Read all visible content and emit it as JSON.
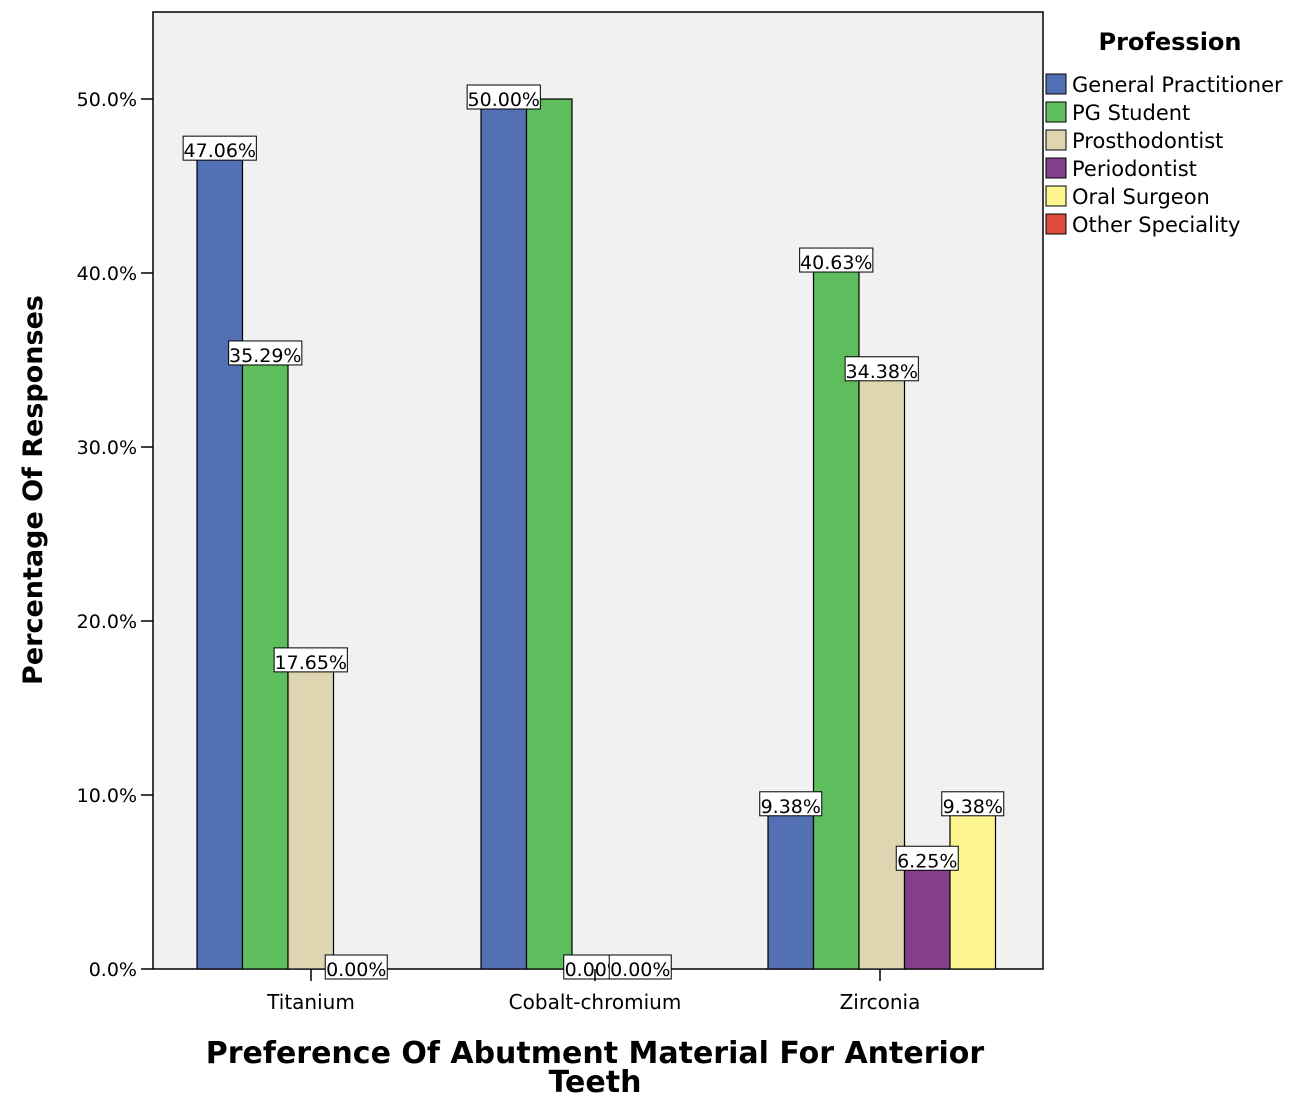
{
  "chart_data": {
    "type": "bar",
    "xlabel_lines": [
      "Preference Of Abutment Material For Anterior",
      "Teeth"
    ],
    "ylabel": "Percentage Of Responses",
    "ylim": [
      0,
      55
    ],
    "yticks": [
      0,
      10,
      20,
      30,
      40,
      50
    ],
    "ytick_labels": [
      "0.0%",
      "10.0%",
      "20.0%",
      "30.0%",
      "40.0%",
      "50.0%"
    ],
    "categories": [
      "Titanium",
      "Cobalt-chromium",
      "Zirconia"
    ],
    "legend": {
      "title": "Profession",
      "position": "right"
    },
    "series": [
      {
        "name": "General Practitioner",
        "color": "#5470b5",
        "values": [
          47.06,
          50.0,
          9.38
        ]
      },
      {
        "name": "PG Student",
        "color": "#5ebe5e",
        "values": [
          35.29,
          50.0,
          40.63
        ]
      },
      {
        "name": "Prosthodontist",
        "color": "#ddd6b0",
        "values": [
          17.65,
          0.0,
          34.38
        ]
      },
      {
        "name": "Periodontist",
        "color": "#833f8a",
        "values": [
          0.0,
          null,
          6.25
        ]
      },
      {
        "name": "Oral Surgeon",
        "color": "#fdf58f",
        "values": [
          null,
          null,
          9.38
        ]
      },
      {
        "name": "Other Speciality",
        "color": "#e04a3a",
        "values": [
          null,
          null,
          null
        ]
      }
    ],
    "bar_labels": [
      [
        "47.06%",
        "50.00%",
        "9.38%"
      ],
      [
        "35.29%",
        "",
        "40.63%"
      ],
      [
        "17.65%",
        "0.00%",
        "34.38%"
      ],
      [
        "0.00%",
        "0.00%",
        "6.25%"
      ],
      [
        "",
        "",
        "9.38%"
      ],
      [
        "",
        "",
        ""
      ]
    ],
    "grid": false,
    "background": "#f1f1f1"
  }
}
